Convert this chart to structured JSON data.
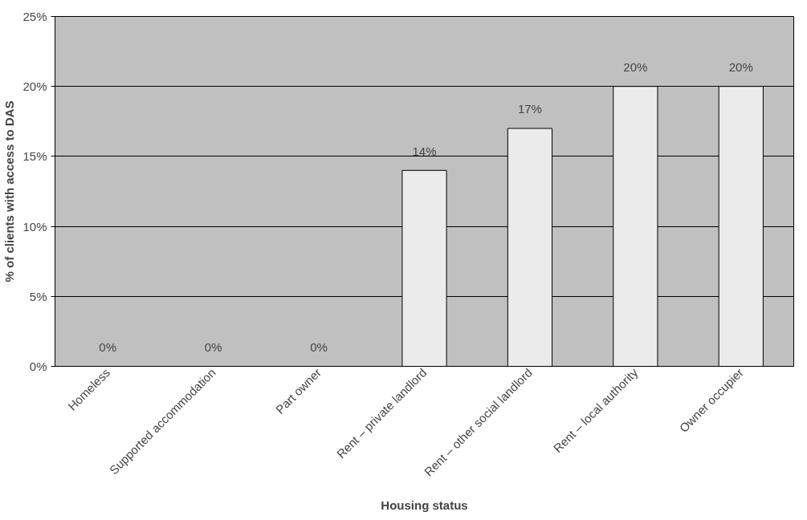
{
  "chart_data": {
    "type": "bar",
    "xlabel": "Housing status",
    "ylabel": "% of clients with access to DAS",
    "categories": [
      "Homeless",
      "Supported accommodation",
      "Part owner",
      "Rent – private landlord",
      "Rent – other social landlord",
      "Rent – local authority",
      "Owner occupier"
    ],
    "values": [
      0,
      0,
      0,
      14,
      17,
      20,
      20
    ],
    "value_labels": [
      "0%",
      "0%",
      "0%",
      "14%",
      "17%",
      "20%",
      "20%"
    ],
    "color": "#ebebeb",
    "ylim": [
      0,
      25
    ],
    "yticks": [
      {
        "value": 0,
        "label": "0%"
      },
      {
        "value": 5,
        "label": "5%"
      },
      {
        "value": 10,
        "label": "10%"
      },
      {
        "value": 15,
        "label": "15%"
      },
      {
        "value": 20,
        "label": "20%"
      },
      {
        "value": 25,
        "label": "25%"
      }
    ],
    "grid": "y"
  }
}
